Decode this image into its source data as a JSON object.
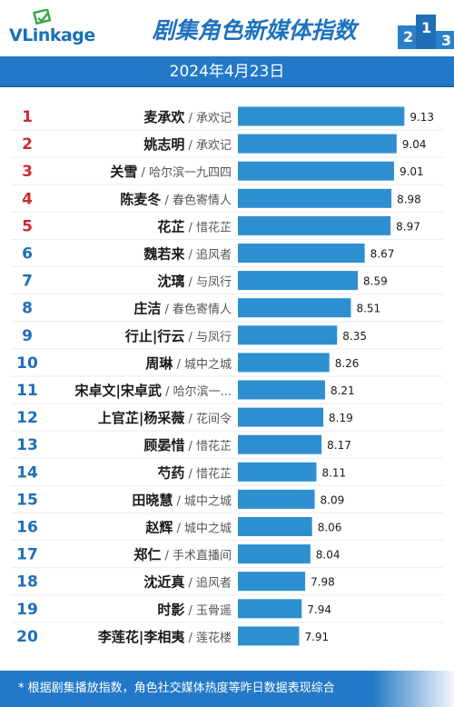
{
  "header": {
    "logo_text": "VLinkage",
    "title": "剧集角色新媒体指数",
    "date": "2024年4月23日",
    "podium_labels": [
      "2",
      "1",
      "3"
    ]
  },
  "footer": {
    "note": "* 根据剧集播放指数，角色社交媒体热度等昨日数据表现综合"
  },
  "colors": {
    "brand_blue": "#2379c7",
    "bar": "#2d8fd0",
    "rank_top": "#cf2b2b",
    "rank_other": "#1e6fb8",
    "text_dark": "#1a1a1a",
    "text_gray": "#555555"
  },
  "chart_data": {
    "type": "bar",
    "orientation": "horizontal",
    "xlim": [
      0,
      9.6
    ],
    "rows": [
      {
        "rank": "1",
        "character": "麦承欢",
        "drama": "承欢记",
        "value": 9.13
      },
      {
        "rank": "2",
        "character": "姚志明",
        "drama": "承欢记",
        "value": 9.04
      },
      {
        "rank": "3",
        "character": "关雪",
        "drama": "哈尔滨一九四四",
        "value": 9.01
      },
      {
        "rank": "4",
        "character": "陈麦冬",
        "drama": "春色寄情人",
        "value": 8.98
      },
      {
        "rank": "5",
        "character": "花芷",
        "drama": "惜花芷",
        "value": 8.97
      },
      {
        "rank": "6",
        "character": "魏若来",
        "drama": "追风者",
        "value": 8.67
      },
      {
        "rank": "7",
        "character": "沈璃",
        "drama": "与凤行",
        "value": 8.59
      },
      {
        "rank": "8",
        "character": "庄洁",
        "drama": "春色寄情人",
        "value": 8.51
      },
      {
        "rank": "9",
        "character": "行止|行云",
        "drama": "与凤行",
        "value": 8.35
      },
      {
        "rank": "10",
        "character": "周琳",
        "drama": "城中之城",
        "value": 8.26
      },
      {
        "rank": "11",
        "character": "宋卓文|宋卓武",
        "drama": "哈尔滨一...",
        "value": 8.21
      },
      {
        "rank": "12",
        "character": "上官芷|杨采薇",
        "drama": "花间令",
        "value": 8.19
      },
      {
        "rank": "13",
        "character": "顾晏惜",
        "drama": "惜花芷",
        "value": 8.17
      },
      {
        "rank": "14",
        "character": "芍药",
        "drama": "惜花芷",
        "value": 8.11
      },
      {
        "rank": "15",
        "character": "田晓慧",
        "drama": "城中之城",
        "value": 8.09
      },
      {
        "rank": "16",
        "character": "赵辉",
        "drama": "城中之城",
        "value": 8.06
      },
      {
        "rank": "17",
        "character": "郑仁",
        "drama": "手术直播间",
        "value": 8.04
      },
      {
        "rank": "18",
        "character": "沈近真",
        "drama": "追风者",
        "value": 7.98
      },
      {
        "rank": "19",
        "character": "时影",
        "drama": "玉骨遥",
        "value": 7.94
      },
      {
        "rank": "20",
        "character": "李莲花|李相夷",
        "drama": "莲花楼",
        "value": 7.91
      }
    ]
  }
}
